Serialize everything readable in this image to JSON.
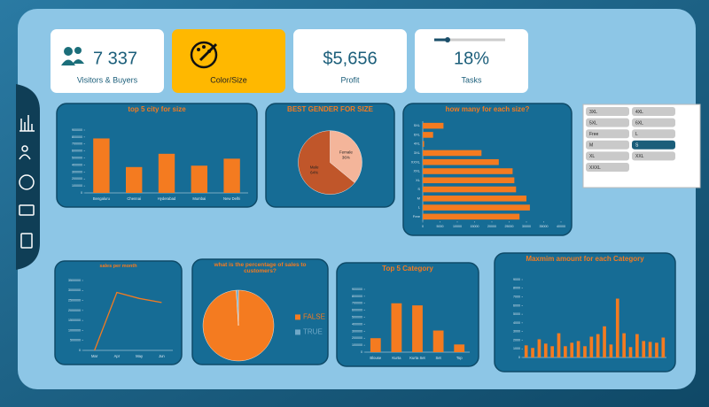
{
  "kpis": [
    {
      "value": "7 337",
      "label": "Visitors & Buyers"
    },
    {
      "label": "Color/Size"
    },
    {
      "value": "$5,656",
      "label": "Profit"
    },
    {
      "value": "18%",
      "label": "Tasks"
    }
  ],
  "slicer": {
    "items": [
      "3XL",
      "4XL",
      "5XL",
      "6XL",
      "Free",
      "L",
      "M",
      "S",
      "XL",
      "XXL",
      "XXXL"
    ],
    "selected": 7
  },
  "chart_data": [
    {
      "type": "bar",
      "title": "top 5 city for size",
      "categories": [
        "Bengaluru",
        "Chennai",
        "Hyderabad",
        "Mumbai",
        "New Delhi"
      ],
      "values": [
        780000,
        370000,
        560000,
        390000,
        490000
      ],
      "color": "#f47b20",
      "ylim": [
        0,
        900000
      ],
      "yticks": [
        0,
        100000,
        200000,
        300000,
        400000,
        500000,
        600000,
        700000,
        800000,
        900000
      ]
    },
    {
      "type": "pie",
      "title": "BEST GENDER FOR SIZE",
      "categories": [
        "Female",
        "Male"
      ],
      "values": [
        36,
        64
      ],
      "value_labels": [
        "36%",
        "64%"
      ],
      "colors": [
        "#f4b59a",
        "#c0562a"
      ],
      "legend": false
    },
    {
      "type": "barh",
      "title": "how many for each size?",
      "categories": [
        "5XL",
        "6XL",
        "4XL",
        "3XL",
        "XXXL",
        "XXL",
        "XL",
        "S",
        "M",
        "L",
        "Free"
      ],
      "values": [
        6000,
        3000,
        400,
        17000,
        22000,
        26000,
        26500,
        27000,
        30000,
        31000,
        28000
      ],
      "color": "#f47b20",
      "xlim": [
        0,
        40000
      ],
      "xticks": [
        0,
        5000,
        10000,
        15000,
        20000,
        25000,
        30000,
        35000,
        40000
      ]
    },
    {
      "type": "line",
      "title": "sales per month",
      "categories": [
        "Mar",
        "Apr",
        "May",
        "Jun"
      ],
      "values": [
        0,
        2900000,
        2600000,
        2400000
      ],
      "color": "#f47b20",
      "ylim": [
        0,
        3500000
      ],
      "yticks": [
        0,
        500000,
        1000000,
        1500000,
        2000000,
        2500000,
        3000000,
        3500000
      ]
    },
    {
      "type": "pie",
      "title": "what is the percentage of sales to customers?",
      "categories": [
        "FALSE",
        "TRUE"
      ],
      "values": [
        99,
        1
      ],
      "colors": [
        "#f47b20",
        "#6fa8c8"
      ],
      "legend": true
    },
    {
      "type": "bar",
      "title": "Top 5 Category",
      "categories": [
        "Blouse",
        "Kurta",
        "Kurta Set",
        "Set",
        "Top"
      ],
      "values": [
        200000,
        700000,
        670000,
        310000,
        110000
      ],
      "color": "#f47b20",
      "ylim": [
        0,
        900000
      ],
      "yticks": [
        0,
        100000,
        200000,
        300000,
        400000,
        500000,
        600000,
        700000,
        800000,
        900000
      ]
    },
    {
      "type": "bar",
      "title": "Maxmim amount for each Category",
      "categories": [
        null,
        null,
        null,
        null,
        null,
        null,
        null,
        null,
        null,
        null,
        null,
        null,
        null,
        null,
        null,
        null,
        null,
        null,
        null,
        null,
        null,
        null
      ],
      "values": [
        1400,
        1100,
        2100,
        1600,
        1300,
        2800,
        1300,
        1700,
        1900,
        1300,
        2400,
        2700,
        3600,
        1500,
        6800,
        2800,
        1200,
        2700,
        1900,
        1800,
        1700,
        2300
      ],
      "color": "#f47b20",
      "ylim": [
        0,
        9000
      ],
      "yticks": [
        0,
        1000,
        2000,
        3000,
        4000,
        5000,
        6000,
        7000,
        8000,
        9000
      ]
    }
  ]
}
